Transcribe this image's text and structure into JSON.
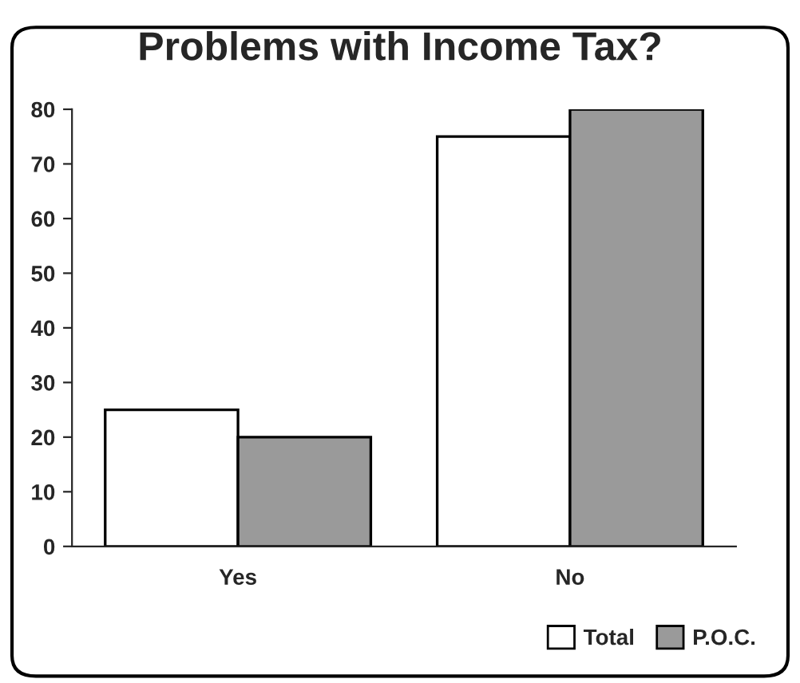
{
  "chart_data": {
    "type": "bar",
    "title": "Problems with Income Tax?",
    "categories": [
      "Yes",
      "No"
    ],
    "series": [
      {
        "name": "Total",
        "color": "#ffffff",
        "values": [
          25,
          75
        ]
      },
      {
        "name": "P.O.C.",
        "color": "#9a9a9a",
        "values": [
          20,
          80
        ]
      }
    ],
    "ylim": [
      0,
      80
    ],
    "yticks": [
      0,
      10,
      20,
      30,
      40,
      50,
      60,
      70,
      80
    ],
    "grid": false,
    "legend": "bottom right"
  }
}
